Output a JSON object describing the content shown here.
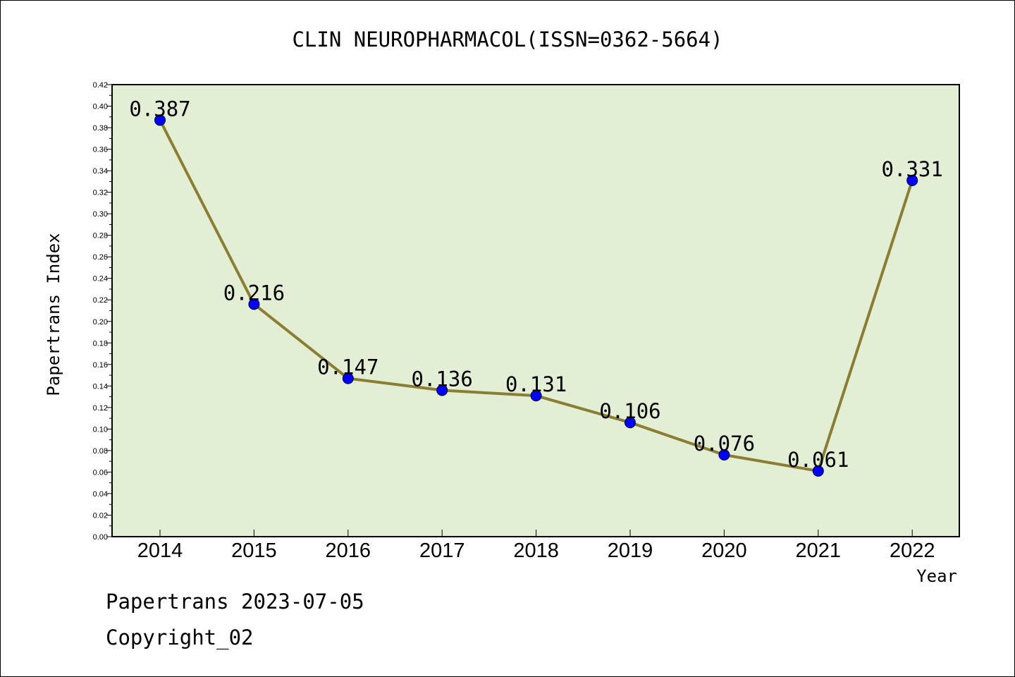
{
  "chart_data": {
    "type": "line",
    "title": "CLIN NEUROPHARMACOL(ISSN=0362-5664)",
    "xlabel": "Year",
    "ylabel": "Papertrans Index",
    "categories": [
      "2014",
      "2015",
      "2016",
      "2017",
      "2018",
      "2019",
      "2020",
      "2021",
      "2022"
    ],
    "series": [
      {
        "values": [
          0.387,
          0.216,
          0.147,
          0.136,
          0.131,
          0.106,
          0.076,
          0.061,
          0.331
        ],
        "labels": [
          "0.387",
          "0.216",
          "0.147",
          "0.136",
          "0.131",
          "0.106",
          "0.076",
          "0.061",
          "0.331"
        ]
      }
    ],
    "ylim": [
      0,
      0.42
    ],
    "y_ticks": [
      "0.00",
      "0.02",
      "0.04",
      "0.06",
      "0.08",
      "0.10",
      "0.12",
      "0.14",
      "0.16",
      "0.18",
      "0.20",
      "0.22",
      "0.24",
      "0.26",
      "0.28",
      "0.30",
      "0.32",
      "0.34",
      "0.36",
      "0.38",
      "0.40",
      "0.42"
    ],
    "grid": false,
    "legend": "none",
    "colors": {
      "plot_background": "#e2efd5",
      "line": "#8b7d32",
      "marker": "#0000ff",
      "axis": "#000000"
    }
  },
  "footer": {
    "line1": "Papertrans 2023-07-05",
    "line2": "Copyright_02"
  }
}
